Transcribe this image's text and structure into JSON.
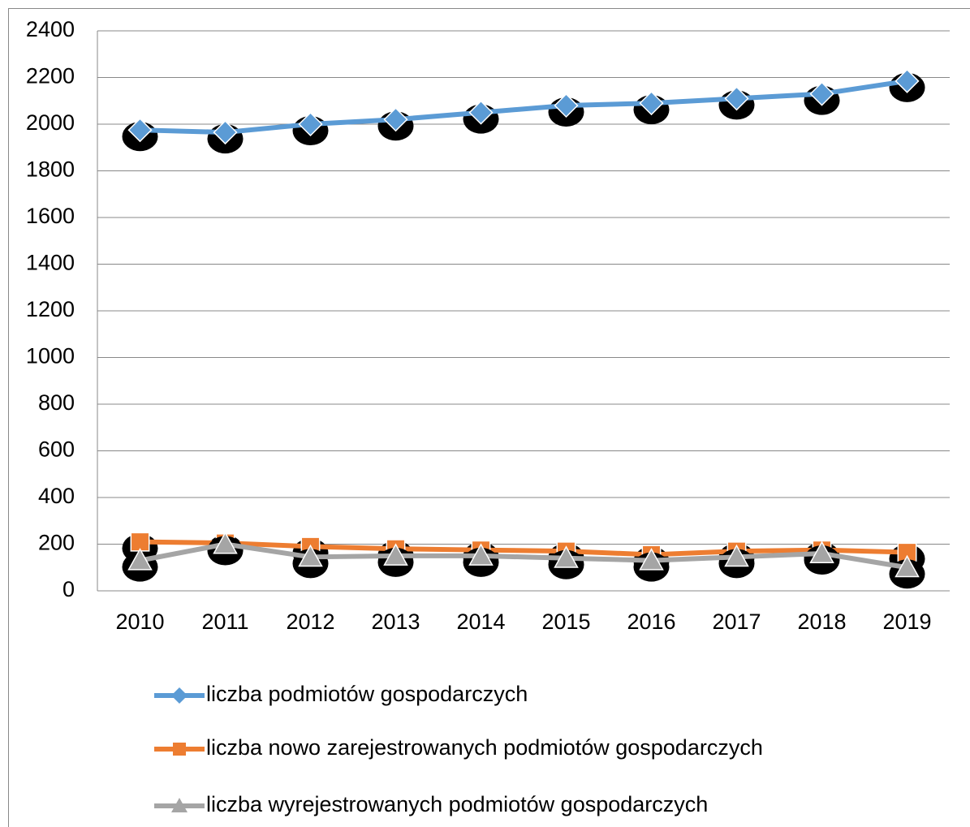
{
  "chart_data": {
    "type": "line",
    "categories": [
      "2010",
      "2011",
      "2012",
      "2013",
      "2014",
      "2015",
      "2016",
      "2017",
      "2018",
      "2019"
    ],
    "series": [
      {
        "name": "liczba podmiotów gospodarczych",
        "color": "#5b9bd5",
        "marker": "diamond",
        "values": [
          1975,
          1965,
          2000,
          2020,
          2050,
          2080,
          2090,
          2110,
          2130,
          2185
        ]
      },
      {
        "name": "liczba nowo zarejestrowanych podmiotów gospodarczych",
        "color": "#ed7d31",
        "marker": "square",
        "values": [
          210,
          205,
          190,
          180,
          175,
          170,
          155,
          170,
          175,
          165
        ]
      },
      {
        "name": "liczba wyrejestrowanych podmiotów gospodarczych",
        "color": "#a5a5a5",
        "marker": "triangle",
        "values": [
          130,
          200,
          145,
          150,
          150,
          140,
          130,
          145,
          160,
          100
        ]
      }
    ],
    "ylim": [
      0,
      2400
    ],
    "yticks": [
      0,
      200,
      400,
      600,
      800,
      1000,
      1200,
      1400,
      1600,
      1800,
      2000,
      2200,
      2400
    ],
    "grid": true,
    "legend": "bottom"
  }
}
